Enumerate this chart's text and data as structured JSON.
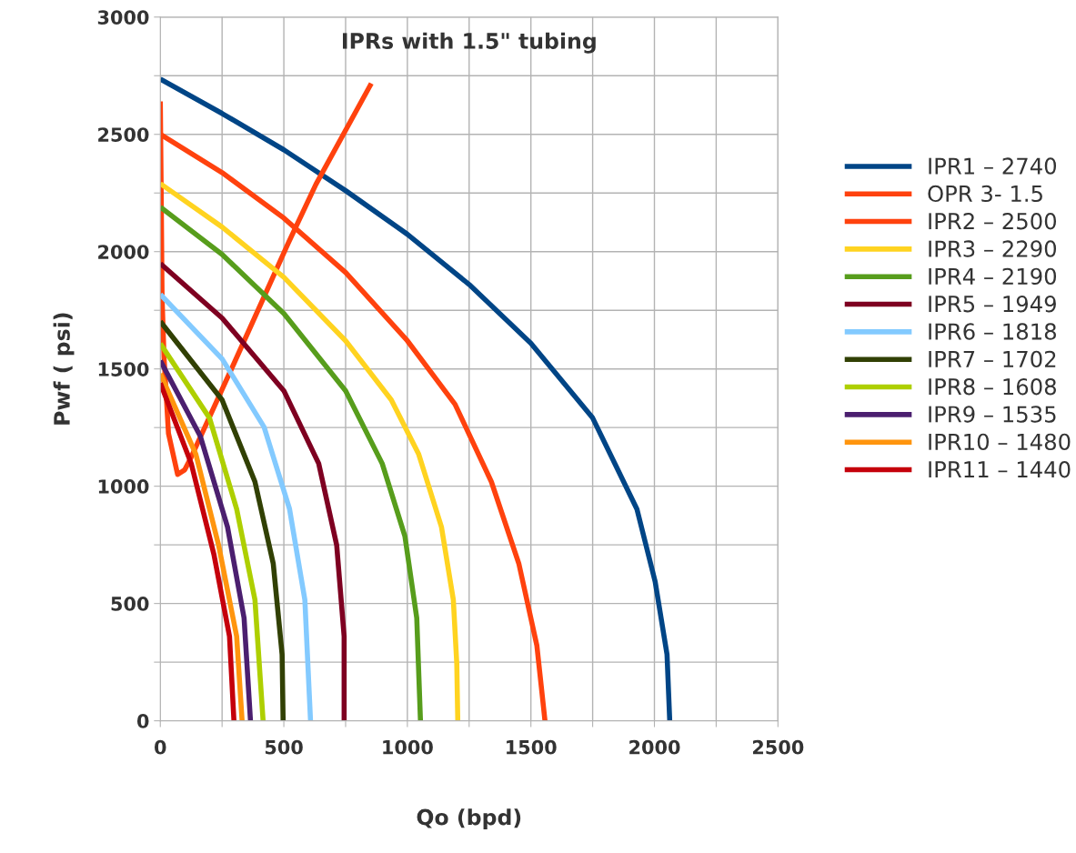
{
  "chart_data": {
    "type": "line",
    "title": "IPRs with 1.5\" tubing",
    "xlabel": "Qo (bpd)",
    "ylabel": "Pwf ( psi)",
    "xlim": [
      0,
      2500
    ],
    "ylim": [
      0,
      3000
    ],
    "xticks": [
      0,
      {
        "value": 250,
        "label": null
      },
      500,
      {
        "value": 750,
        "label": null
      },
      1000,
      {
        "value": 1250,
        "label": null
      },
      1500,
      {
        "value": 1750,
        "label": null
      },
      2000,
      {
        "value": 2250,
        "label": null
      },
      2500
    ],
    "yticks": [
      0,
      {
        "value": 250,
        "label": null
      },
      500,
      {
        "value": 750,
        "label": null
      },
      1000,
      {
        "value": 1250,
        "label": null
      },
      1500,
      {
        "value": 1750,
        "label": null
      },
      2000,
      {
        "value": 2250,
        "label": null
      },
      2500,
      {
        "value": 2750,
        "label": null
      },
      3000
    ],
    "grid": true,
    "legend": "right",
    "marker": "none",
    "line_style": "solid",
    "series": [
      {
        "name": "IPR1 – 2740",
        "color": "#004586",
        "x": [
          0,
          250,
          500,
          750,
          1000,
          1250,
          1500,
          1750,
          1929,
          2003,
          2051,
          2062
        ],
        "values": [
          2736,
          2589,
          2434,
          2260,
          2074,
          1860,
          1609,
          1291,
          903,
          593,
          283,
          0
        ]
      },
      {
        "name": "OPR 3- 1.5",
        "color": "#ff420e",
        "x": [
          0,
          4,
          7,
          15,
          33,
          70,
          99,
          125,
          298,
          519,
          630,
          854
        ],
        "values": [
          2640,
          2194,
          1806,
          1550,
          1225,
          1050,
          1070,
          1124,
          1523,
          2039,
          2287,
          2717
        ]
      },
      {
        "name": "IPR2 – 2500",
        "color": "#ff420e",
        "x": [
          0,
          250,
          500,
          750,
          1000,
          1193,
          1340,
          1451,
          1524,
          1557
        ],
        "values": [
          2500,
          2337,
          2143,
          1911,
          1620,
          1349,
          1019,
          671,
          322,
          0
        ]
      },
      {
        "name": "IPR3 – 2290",
        "color": "#ffd320",
        "x": [
          0,
          250,
          500,
          750,
          935,
          1046,
          1138,
          1186,
          1200,
          1204
        ],
        "values": [
          2290,
          2105,
          1891,
          1620,
          1368,
          1136,
          826,
          516,
          244,
          0
        ]
      },
      {
        "name": "IPR4 – 2190",
        "color": "#579d1c",
        "x": [
          0,
          250,
          500,
          750,
          898,
          990,
          1038,
          1053
        ],
        "values": [
          2190,
          1988,
          1736,
          1407,
          1097,
          787,
          438,
          0
        ]
      },
      {
        "name": "IPR5 – 1949",
        "color": "#7e0021",
        "x": [
          0,
          250,
          500,
          641,
          714,
          744,
          744
        ],
        "values": [
          1949,
          1717,
          1407,
          1097,
          748,
          360,
          0
        ]
      },
      {
        "name": "IPR6 – 1818",
        "color": "#83caff",
        "x": [
          0,
          250,
          420,
          523,
          585,
          608
        ],
        "values": [
          1818,
          1543,
          1252,
          903,
          516,
          0
        ]
      },
      {
        "name": "IPR7 – 1702",
        "color": "#314004",
        "x": [
          0,
          250,
          383,
          457,
          493,
          497
        ],
        "values": [
          1702,
          1368,
          1019,
          671,
          283,
          0
        ]
      },
      {
        "name": "IPR8 – 1608",
        "color": "#aecf00",
        "x": [
          0,
          199,
          309,
          383,
          416
        ],
        "values": [
          1608,
          1291,
          903,
          516,
          0
        ]
      },
      {
        "name": "IPR9 – 1535",
        "color": "#4b1f6f",
        "x": [
          0,
          162,
          272,
          339,
          365
        ],
        "values": [
          1535,
          1213,
          826,
          438,
          0
        ]
      },
      {
        "name": "IPR10 – 1480",
        "color": "#ff950e",
        "x": [
          0,
          144,
          236,
          309,
          331
        ],
        "values": [
          1480,
          1136,
          748,
          360,
          0
        ]
      },
      {
        "name": "IPR11 – 1440",
        "color": "#c5000b",
        "x": [
          0,
          125,
          217,
          280,
          298
        ],
        "values": [
          1440,
          1097,
          709,
          360,
          0
        ]
      }
    ]
  }
}
